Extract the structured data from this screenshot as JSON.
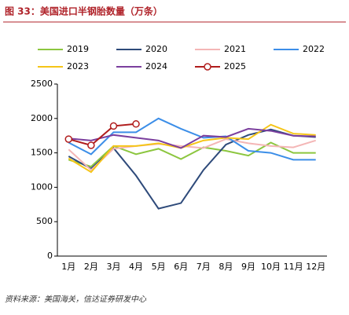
{
  "chart_data": {
    "type": "line",
    "title": "图 33：美国进口半钢胎数量（万条）",
    "source": "资料来源：美国海关，信达证券研发中心",
    "categories": [
      "1月",
      "2月",
      "3月",
      "4月",
      "5月",
      "6月",
      "7月",
      "8月",
      "9月",
      "10月",
      "11月",
      "12月"
    ],
    "ylim": [
      0,
      2500
    ],
    "yticks": [
      0,
      500,
      1000,
      1500,
      2000,
      2500
    ],
    "series": [
      {
        "name": "2019",
        "color": "#8cc63f",
        "values": [
          1400,
          1300,
          1600,
          1480,
          1560,
          1410,
          1580,
          1530,
          1460,
          1650,
          1500,
          1500
        ]
      },
      {
        "name": "2020",
        "color": "#2e4a7a",
        "values": [
          1450,
          1270,
          1570,
          1170,
          690,
          770,
          1250,
          1620,
          1760,
          1840,
          1750,
          1730
        ]
      },
      {
        "name": "2021",
        "color": "#f4b6b6",
        "values": [
          1550,
          1250,
          1560,
          1600,
          1630,
          1600,
          1570,
          1700,
          1640,
          1600,
          1580,
          1680
        ]
      },
      {
        "name": "2022",
        "color": "#3c8ee8",
        "values": [
          1650,
          1480,
          1800,
          1800,
          2000,
          1850,
          1720,
          1740,
          1530,
          1500,
          1400,
          1400
        ]
      },
      {
        "name": "2023",
        "color": "#f5c518",
        "values": [
          1420,
          1220,
          1600,
          1600,
          1640,
          1570,
          1680,
          1720,
          1700,
          1910,
          1780,
          1760
        ]
      },
      {
        "name": "2024",
        "color": "#7b3f9e",
        "values": [
          1710,
          1680,
          1760,
          1720,
          1680,
          1570,
          1750,
          1730,
          1850,
          1820,
          1750,
          1740
        ]
      },
      {
        "name": "2025",
        "color": "#b01c1c",
        "markers": true,
        "values": [
          1700,
          1610,
          1890,
          1920,
          null,
          null,
          null,
          null,
          null,
          null,
          null,
          null
        ]
      }
    ]
  }
}
